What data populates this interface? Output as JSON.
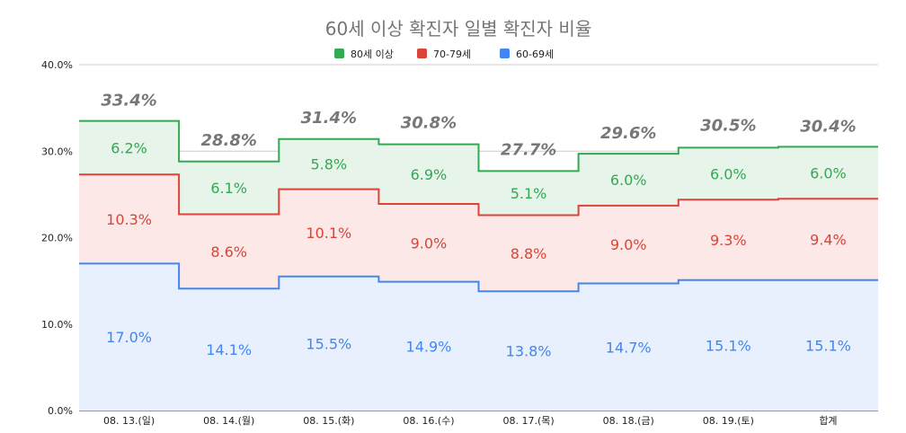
{
  "chart_data": {
    "type": "area",
    "stacked": true,
    "stepped": true,
    "title": "60세 이상 확진자 일별 확진자 비율",
    "categories": [
      "08. 13.(일)",
      "08. 14.(월)",
      "08. 15.(화)",
      "08. 16.(수)",
      "08. 17.(목)",
      "08. 18.(금)",
      "08. 19.(토)",
      "합계"
    ],
    "ylim": [
      0,
      40
    ],
    "yticks": [
      {
        "value": 0,
        "label": "0.0%"
      },
      {
        "value": 10,
        "label": "10.0%"
      },
      {
        "value": 20,
        "label": "20.0%"
      },
      {
        "value": 30,
        "label": "30.0%"
      },
      {
        "value": 40,
        "label": "40.0%"
      }
    ],
    "grid": true,
    "legend_position": "top",
    "series": [
      {
        "name": "60-69세",
        "color": "#4285f4",
        "fill": "#e8f0fd",
        "values": [
          17.0,
          14.1,
          15.5,
          14.9,
          13.8,
          14.7,
          15.1,
          15.1
        ],
        "labels": [
          "17.0%",
          "14.1%",
          "15.5%",
          "14.9%",
          "13.8%",
          "14.7%",
          "15.1%",
          "15.1%"
        ]
      },
      {
        "name": "70-79세",
        "color": "#db4437",
        "fill": "#fce8e6",
        "values": [
          10.3,
          8.6,
          10.1,
          9.0,
          8.8,
          9.0,
          9.3,
          9.4
        ],
        "labels": [
          "10.3%",
          "8.6%",
          "10.1%",
          "9.0%",
          "8.8%",
          "9.0%",
          "9.3%",
          "9.4%"
        ]
      },
      {
        "name": "80세 이상",
        "color": "#34a853",
        "fill": "#e6f4ea",
        "values": [
          6.2,
          6.1,
          5.8,
          6.9,
          5.1,
          6.0,
          6.0,
          6.0
        ],
        "labels": [
          "6.2%",
          "6.1%",
          "5.8%",
          "6.9%",
          "5.1%",
          "6.0%",
          "6.0%",
          "6.0%"
        ]
      }
    ],
    "legend_order": [
      "80세 이상",
      "70-79세",
      "60-69세"
    ],
    "totals": [
      33.4,
      28.8,
      31.4,
      30.8,
      27.7,
      29.6,
      30.5,
      30.4
    ],
    "total_labels": [
      "33.4%",
      "28.8%",
      "31.4%",
      "30.8%",
      "27.7%",
      "29.6%",
      "30.5%",
      "30.4%"
    ]
  }
}
